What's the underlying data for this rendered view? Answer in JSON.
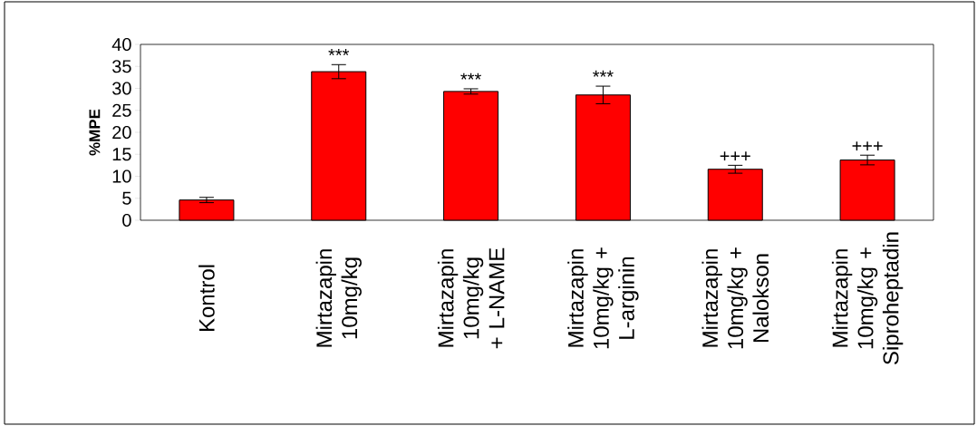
{
  "chart_data": {
    "type": "bar",
    "ylabel": "%MPE",
    "categories": [
      "Kontrol",
      "Mirtazapin 10mg/kg",
      "Mirtazapin 10mg/kg + L-NAME",
      "Mirtazapin 10mg/kg + L-arginin",
      "Mirtazapin 10mg/kg + Nalokson",
      "Mirtazapin 10mg/kg + Siproheptadin"
    ],
    "values": [
      4.6,
      33.8,
      29.3,
      28.5,
      11.6,
      13.7
    ],
    "errors": [
      0.6,
      1.6,
      0.6,
      2.0,
      0.9,
      1.1
    ],
    "color": "#ff0000",
    "ylim": [
      0,
      40
    ],
    "yticks": [
      0,
      5,
      10,
      15,
      20,
      25,
      30,
      35,
      40
    ],
    "value_labels": [
      null,
      "***",
      "***",
      "***",
      "+++",
      "+++"
    ]
  }
}
